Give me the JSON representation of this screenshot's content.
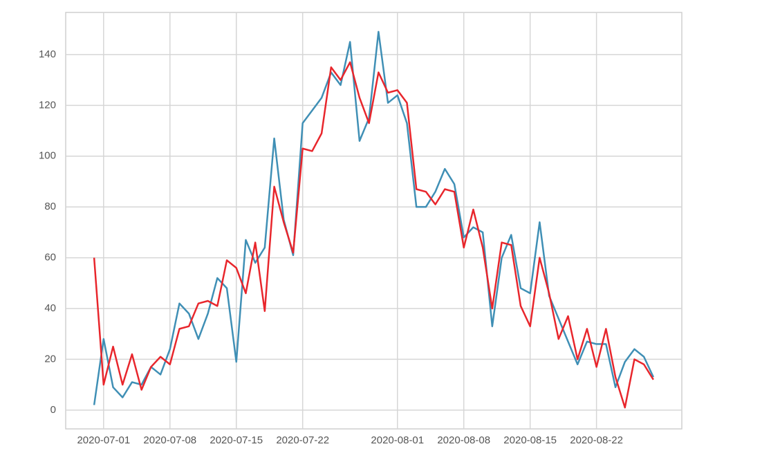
{
  "chart_data": {
    "type": "line",
    "x": [
      "2020-06-30",
      "2020-07-01",
      "2020-07-02",
      "2020-07-03",
      "2020-07-04",
      "2020-07-05",
      "2020-07-06",
      "2020-07-07",
      "2020-07-08",
      "2020-07-09",
      "2020-07-10",
      "2020-07-11",
      "2020-07-12",
      "2020-07-13",
      "2020-07-14",
      "2020-07-15",
      "2020-07-16",
      "2020-07-17",
      "2020-07-18",
      "2020-07-19",
      "2020-07-20",
      "2020-07-21",
      "2020-07-22",
      "2020-07-23",
      "2020-07-24",
      "2020-07-25",
      "2020-07-26",
      "2020-07-27",
      "2020-07-28",
      "2020-07-29",
      "2020-07-30",
      "2020-07-31",
      "2020-08-01",
      "2020-08-02",
      "2020-08-03",
      "2020-08-04",
      "2020-08-05",
      "2020-08-06",
      "2020-08-07",
      "2020-08-08",
      "2020-08-09",
      "2020-08-10",
      "2020-08-11",
      "2020-08-12",
      "2020-08-13",
      "2020-08-14",
      "2020-08-15",
      "2020-08-16",
      "2020-08-17",
      "2020-08-18",
      "2020-08-19",
      "2020-08-20",
      "2020-08-21",
      "2020-08-22",
      "2020-08-23",
      "2020-08-24",
      "2020-08-25",
      "2020-08-26",
      "2020-08-27",
      "2020-08-28"
    ],
    "series": [
      {
        "color": "#3f8fb5",
        "values": [
          2,
          28,
          9,
          5,
          11,
          10,
          17,
          14,
          24,
          42,
          38,
          28,
          38,
          52,
          48,
          19,
          67,
          58,
          64,
          107,
          75,
          61,
          113,
          118,
          123,
          133,
          128,
          145,
          106,
          115,
          149,
          121,
          124,
          113,
          80,
          80,
          86,
          95,
          89,
          68,
          72,
          70,
          33,
          60,
          69,
          48,
          46,
          74,
          45,
          36,
          27,
          18,
          27,
          26,
          26,
          9,
          19,
          24,
          21,
          13
        ]
      },
      {
        "color": "#e8262c",
        "values": [
          60,
          10,
          25,
          10,
          22,
          8,
          17,
          21,
          18,
          32,
          33,
          42,
          43,
          41,
          59,
          56,
          46,
          66,
          39,
          88,
          74,
          62,
          103,
          102,
          109,
          135,
          130,
          137,
          123,
          113,
          133,
          125,
          126,
          121,
          87,
          86,
          81,
          87,
          86,
          64,
          79,
          64,
          40,
          66,
          65,
          41,
          33,
          60,
          46,
          28,
          37,
          20,
          32,
          17,
          32,
          13,
          1,
          20,
          18,
          12
        ]
      }
    ],
    "xlim": [
      "2020-06-27",
      "2020-08-31"
    ],
    "xticks": [
      "2020-07-01",
      "2020-07-08",
      "2020-07-15",
      "2020-07-22",
      "2020-08-01",
      "2020-08-08",
      "2020-08-15",
      "2020-08-22"
    ],
    "ylim": [
      -7.4,
      156.6
    ],
    "yticks": [
      0,
      20,
      40,
      60,
      80,
      100,
      120,
      140
    ],
    "grid": true
  }
}
